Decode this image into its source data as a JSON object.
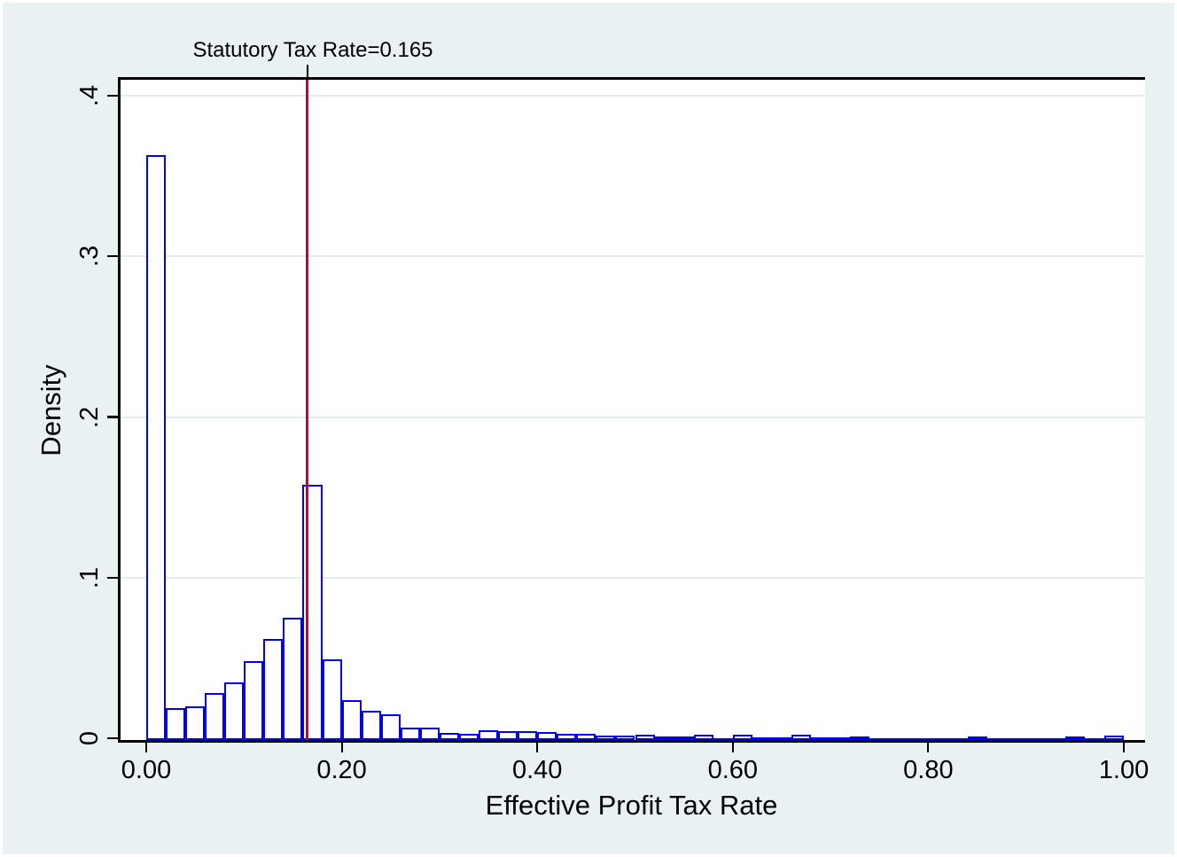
{
  "figure": {
    "background_color": "#e9f1f3",
    "plot_background_color": "#ffffff",
    "axis_color": "#000000",
    "grid_color": "#e2edf0",
    "bar_stroke_color": "#0202e8",
    "bar_fill_color": "#ffffff",
    "reference_line_color": "#c10534"
  },
  "chart_data": {
    "type": "bar",
    "subtype": "histogram",
    "title": "",
    "xlabel": "Effective Profit Tax Rate",
    "ylabel": "Density",
    "xlim": [
      -0.029,
      1.022
    ],
    "ylim": [
      0,
      0.4125
    ],
    "x_tick_values": [
      0,
      0.2,
      0.4,
      0.6,
      0.8,
      1.0
    ],
    "x_tick_labels": [
      "0.00",
      "0.20",
      "0.40",
      "0.60",
      "0.80",
      "1.00"
    ],
    "y_tick_values": [
      0,
      0.1,
      0.2,
      0.3,
      0.4
    ],
    "y_tick_labels": [
      "0",
      ".1",
      ".2",
      ".3",
      ".4"
    ],
    "grid": "horizontal-only",
    "legend_position": "none",
    "bin_width": 0.02,
    "bin_starts": [
      0.0,
      0.02,
      0.04,
      0.06,
      0.08,
      0.1,
      0.12,
      0.14,
      0.16,
      0.18,
      0.2,
      0.22,
      0.24,
      0.26,
      0.28,
      0.3,
      0.32,
      0.34,
      0.36,
      0.38,
      0.4,
      0.42,
      0.44,
      0.46,
      0.48,
      0.5,
      0.52,
      0.54,
      0.56,
      0.58,
      0.6,
      0.62,
      0.64,
      0.66,
      0.68,
      0.7,
      0.72,
      0.74,
      0.76,
      0.78,
      0.8,
      0.82,
      0.84,
      0.86,
      0.88,
      0.9,
      0.92,
      0.94,
      0.96,
      0.98
    ],
    "densities": [
      0.364,
      0.02,
      0.021,
      0.029,
      0.036,
      0.049,
      0.063,
      0.076,
      0.159,
      0.05,
      0.025,
      0.018,
      0.016,
      0.008,
      0.008,
      0.0045,
      0.004,
      0.006,
      0.0055,
      0.0055,
      0.005,
      0.004,
      0.004,
      0.003,
      0.003,
      0.0033,
      0.0022,
      0.0022,
      0.0033,
      0.001,
      0.0033,
      0.0015,
      0.0015,
      0.0035,
      0.0015,
      0.0015,
      0.002,
      0.001,
      0.001,
      0.001,
      0.001,
      0.001,
      0.002,
      0.001,
      0.001,
      0.001,
      0.001,
      0.002,
      0.001,
      0.003
    ],
    "reference_line": {
      "x": 0.165,
      "label": "Statutory Tax Rate=0.165",
      "color": "#c10534"
    }
  }
}
